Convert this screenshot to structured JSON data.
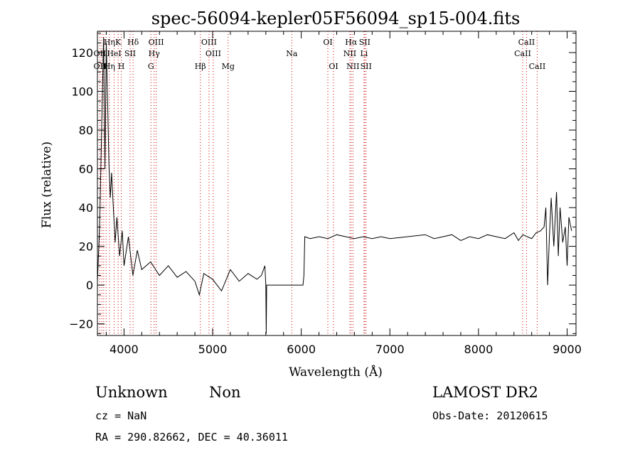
{
  "chart_data": {
    "type": "line",
    "title": "spec-56094-kepler05F56094_sp15-004.fits",
    "xlabel": "Wavelength (Å)",
    "ylabel": "Flux (relative)",
    "xlim": [
      3700,
      9100
    ],
    "ylim": [
      -26,
      131
    ],
    "x_ticks": [
      4000,
      5000,
      6000,
      7000,
      8000,
      9000
    ],
    "y_ticks": [
      -20,
      0,
      20,
      40,
      60,
      80,
      100,
      120
    ],
    "x_tick_labels": [
      "4000",
      "5000",
      "6000",
      "7000",
      "8000",
      "9000"
    ],
    "y_tick_labels": [
      "−20",
      "0",
      "20",
      "40",
      "60",
      "80",
      "100",
      "120"
    ],
    "grid": false,
    "series": [
      {
        "x": [
          3700,
          3725,
          3750,
          3770,
          3785,
          3800,
          3815,
          3830,
          3845,
          3860,
          3880,
          3900,
          3920,
          3950,
          3980,
          4000,
          4050,
          4100,
          4150,
          4200,
          4300,
          4400,
          4500,
          4600,
          4700,
          4800,
          4850,
          4900,
          5000,
          5100,
          5200,
          5300,
          5400,
          5500,
          5550,
          5590,
          5600,
          5605,
          5610,
          6000,
          6020,
          6030,
          6035,
          6040,
          6100,
          6200,
          6300,
          6400,
          6500,
          6600,
          6700,
          6800,
          6900,
          7000,
          7200,
          7400,
          7500,
          7600,
          7700,
          7800,
          7900,
          8000,
          8100,
          8200,
          8300,
          8400,
          8450,
          8500,
          8550,
          8600,
          8650,
          8700,
          8740,
          8760,
          8780,
          8800,
          8820,
          8850,
          8880,
          8900,
          8920,
          8950,
          8980,
          9000,
          9020,
          9050
        ],
        "y": [
          2,
          30,
          85,
          128,
          60,
          125,
          95,
          62,
          45,
          58,
          40,
          22,
          35,
          15,
          28,
          10,
          25,
          5,
          18,
          8,
          12,
          5,
          10,
          4,
          7,
          2,
          -5,
          6,
          3,
          -3,
          8,
          2,
          6,
          3,
          5,
          10,
          0,
          -25,
          0,
          0,
          0,
          5,
          15,
          25,
          24,
          25,
          24,
          26,
          25,
          24,
          25,
          24,
          25,
          24,
          25,
          26,
          24,
          25,
          26,
          23,
          25,
          24,
          26,
          25,
          24,
          27,
          23,
          26,
          25,
          24,
          27,
          28,
          30,
          40,
          0,
          25,
          45,
          20,
          48,
          15,
          40,
          22,
          30,
          10,
          35,
          28
        ]
      }
    ],
    "line_labels": [
      {
        "label": "Hη",
        "wave": 3835,
        "row": 0
      },
      {
        "label": "K",
        "wave": 3934,
        "row": 0
      },
      {
        "label": "Hδ",
        "wave": 4102,
        "row": 0
      },
      {
        "label": "OIII",
        "wave": 4363,
        "row": 0
      },
      {
        "label": "OIII",
        "wave": 4959,
        "row": 0
      },
      {
        "label": "OI",
        "wave": 6300,
        "row": 0
      },
      {
        "label": "Hα",
        "wave": 6563,
        "row": 0
      },
      {
        "label": "SII",
        "wave": 6716,
        "row": 0
      },
      {
        "label": "CaII",
        "wave": 8542,
        "row": 0
      },
      {
        "label": "OII",
        "wave": 3727,
        "row": 1
      },
      {
        "label": "HeI",
        "wave": 3889,
        "row": 1
      },
      {
        "label": "SII",
        "wave": 4069,
        "row": 1
      },
      {
        "label": "Hγ",
        "wave": 4340,
        "row": 1
      },
      {
        "label": "OIII",
        "wave": 5007,
        "row": 1
      },
      {
        "label": "Na",
        "wave": 5893,
        "row": 1
      },
      {
        "label": "NII",
        "wave": 6548,
        "row": 1
      },
      {
        "label": "Li",
        "wave": 6708,
        "row": 1
      },
      {
        "label": "CaII",
        "wave": 8498,
        "row": 1
      },
      {
        "label": "OII",
        "wave": 3727,
        "row": 2
      },
      {
        "label": "Hη",
        "wave": 3835,
        "row": 2
      },
      {
        "label": "H",
        "wave": 3969,
        "row": 2
      },
      {
        "label": "G",
        "wave": 4304,
        "row": 2
      },
      {
        "label": "Hβ",
        "wave": 4861,
        "row": 2
      },
      {
        "label": "Mg",
        "wave": 5175,
        "row": 2
      },
      {
        "label": "OI",
        "wave": 6364,
        "row": 2
      },
      {
        "label": "NII",
        "wave": 6583,
        "row": 2
      },
      {
        "label": "SII",
        "wave": 6731,
        "row": 2
      },
      {
        "label": "CaII",
        "wave": 8662,
        "row": 2
      }
    ],
    "marker_waves": [
      3727,
      3750,
      3771,
      3798,
      3835,
      3889,
      3934,
      3969,
      4069,
      4102,
      4304,
      4340,
      4363,
      4861,
      4959,
      5007,
      5175,
      5893,
      6300,
      6364,
      6548,
      6563,
      6583,
      6708,
      6716,
      6731,
      8498,
      8542,
      8662
    ],
    "marker_color": "#cc0000",
    "line_color": "#000000"
  },
  "footer": {
    "class_label": "Unknown",
    "subclass_label": "Non",
    "cz_text": "cz = NaN",
    "coords_text": "RA = 290.82662, DEC =  40.36011",
    "survey_label": "LAMOST DR2",
    "obs_date_text": "Obs-Date: 20120615"
  }
}
